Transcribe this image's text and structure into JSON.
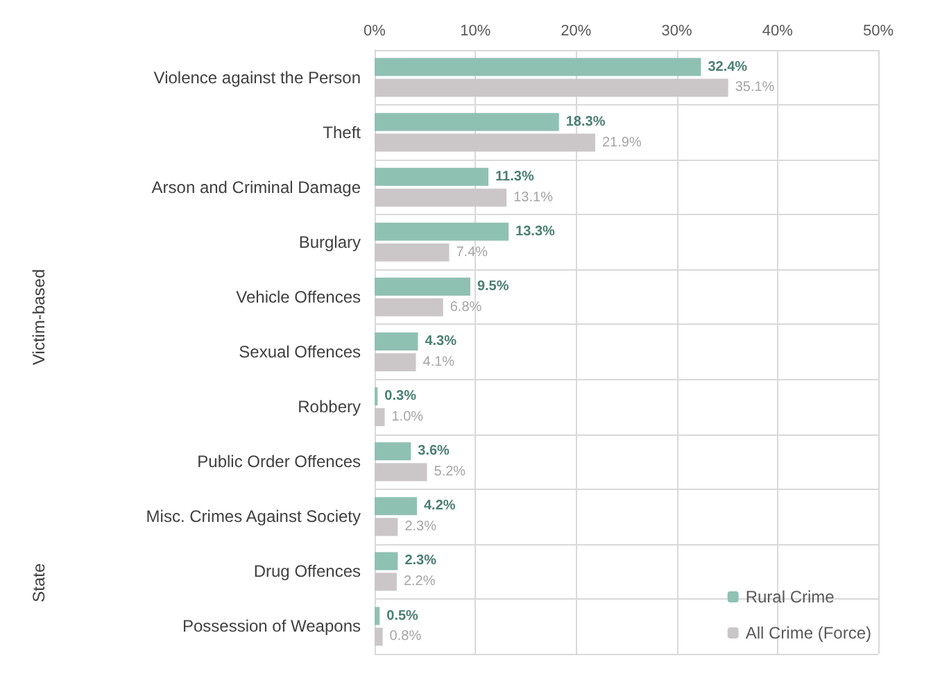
{
  "chart_data": {
    "type": "bar",
    "orientation": "horizontal",
    "categories": [
      "Violence against the Person",
      "Theft",
      "Arson and Criminal Damage",
      "Burglary",
      "Vehicle Offences",
      "Sexual Offences",
      "Robbery",
      "Public Order Offences",
      "Misc. Crimes Against Society",
      "Drug Offences",
      "Possession of Weapons"
    ],
    "series": [
      {
        "name": "Rural Crime",
        "color": "#8fc1b3",
        "values": [
          32.4,
          18.3,
          11.3,
          13.3,
          9.5,
          4.3,
          0.3,
          3.6,
          4.2,
          2.3,
          0.5
        ],
        "value_labels": [
          "32.4%",
          "18.3%",
          "11.3%",
          "13.3%",
          "9.5%",
          "4.3%",
          "0.3%",
          "3.6%",
          "4.2%",
          "2.3%",
          "0.5%"
        ]
      },
      {
        "name": "All Crime (Force)",
        "color": "#cbc7c8",
        "values": [
          35.1,
          21.9,
          13.1,
          7.4,
          6.8,
          4.1,
          1.0,
          5.2,
          2.3,
          2.2,
          0.8
        ],
        "value_labels": [
          "35.1%",
          "21.9%",
          "13.1%",
          "7.4%",
          "6.8%",
          "4.1%",
          "1.0%",
          "5.2%",
          "2.3%",
          "2.2%",
          "0.8%"
        ]
      }
    ],
    "xlim": [
      0,
      50
    ],
    "xticks": [
      {
        "value": 0,
        "label": "0%"
      },
      {
        "value": 10,
        "label": "10%"
      },
      {
        "value": 20,
        "label": "20%"
      },
      {
        "value": 30,
        "label": "30%"
      },
      {
        "value": 40,
        "label": "40%"
      },
      {
        "value": 50,
        "label": "50%"
      }
    ],
    "annotations": [
      "Victim-based",
      "State"
    ],
    "grid": true,
    "legend": "bottom right"
  }
}
